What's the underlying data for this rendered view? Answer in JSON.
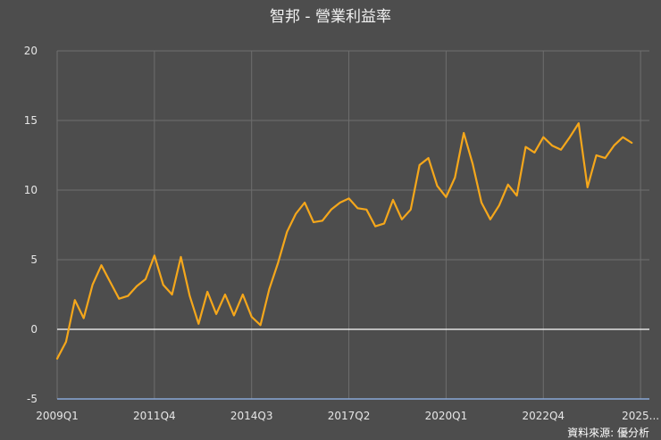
{
  "title": "智邦 - 營業利益率",
  "source": "資料來源: 優分析",
  "colors": {
    "background": "#4d4d4d",
    "line": "#f5a71b",
    "grid": "#6e6e6e",
    "zero_line": "#ffffff",
    "axis": "#8aa8d8",
    "text": "#e6e6e6"
  },
  "chart_data": {
    "type": "line",
    "title": "智邦 - 營業利益率",
    "xlabel": "",
    "ylabel": "",
    "ylim": [
      -5,
      20
    ],
    "yticks": [
      -5,
      0,
      5,
      10,
      15,
      20
    ],
    "xtick_labels": [
      "2009Q1",
      "2011Q4",
      "2014Q3",
      "2017Q2",
      "2020Q1",
      "2022Q4",
      "2025..."
    ],
    "grid": true,
    "x": [
      "2009Q1",
      "2009Q2",
      "2009Q3",
      "2009Q4",
      "2010Q1",
      "2010Q2",
      "2010Q3",
      "2010Q4",
      "2011Q1",
      "2011Q2",
      "2011Q3",
      "2011Q4",
      "2012Q1",
      "2012Q2",
      "2012Q3",
      "2012Q4",
      "2013Q1",
      "2013Q2",
      "2013Q3",
      "2013Q4",
      "2014Q1",
      "2014Q2",
      "2014Q3",
      "2014Q4",
      "2015Q1",
      "2015Q2",
      "2015Q3",
      "2015Q4",
      "2016Q1",
      "2016Q2",
      "2016Q3",
      "2016Q4",
      "2017Q1",
      "2017Q2",
      "2017Q3",
      "2017Q4",
      "2018Q1",
      "2018Q2",
      "2018Q3",
      "2018Q4",
      "2019Q1",
      "2019Q2",
      "2019Q3",
      "2019Q4",
      "2020Q1",
      "2020Q2",
      "2020Q3",
      "2020Q4",
      "2021Q1",
      "2021Q2",
      "2021Q3",
      "2021Q4",
      "2022Q1",
      "2022Q2",
      "2022Q3",
      "2022Q4",
      "2023Q1",
      "2023Q2",
      "2023Q3",
      "2023Q4",
      "2024Q1",
      "2024Q2",
      "2024Q3",
      "2024Q4",
      "2025Q1",
      "2025Q2",
      "2025Q3"
    ],
    "series": [
      {
        "values": [
          -2.1,
          -0.9,
          2.1,
          0.8,
          3.2,
          4.6,
          3.4,
          2.2,
          2.4,
          3.1,
          3.6,
          5.3,
          3.2,
          2.5,
          5.2,
          2.4,
          0.4,
          2.7,
          1.1,
          2.5,
          1.0,
          2.5,
          0.9,
          0.3,
          2.9,
          4.8,
          7.0,
          8.3,
          9.1,
          7.7,
          7.8,
          8.6,
          9.1,
          9.4,
          8.7,
          8.6,
          7.4,
          7.6,
          9.3,
          7.9,
          8.6,
          11.8,
          12.3,
          10.3,
          9.5,
          10.9,
          14.1,
          11.9,
          9.1,
          7.9,
          8.9,
          10.4,
          9.6,
          13.1,
          12.7,
          13.8,
          13.2,
          12.9,
          13.8,
          14.8,
          10.2,
          12.5,
          12.3,
          13.2,
          13.8,
          13.4,
          null
        ]
      }
    ]
  }
}
